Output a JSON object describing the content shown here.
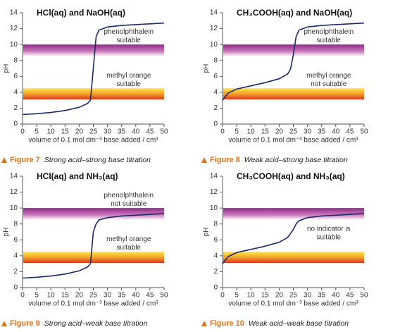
{
  "chart_data": [
    {
      "type": "line",
      "title": "HCl(aq) and NaOH(aq)",
      "caption_label": "Figure 7",
      "caption": "Strong acid–strong base titration",
      "xlabel": "volume of 0.1 mol dm⁻³ base added / cm³",
      "ylabel": "pH",
      "color": "#1b2a6b",
      "x": [
        0,
        5,
        10,
        15,
        20,
        23,
        24,
        25,
        26,
        27,
        30,
        35,
        40,
        45,
        50
      ],
      "values": [
        1.2,
        1.3,
        1.45,
        1.7,
        2.1,
        2.6,
        3.0,
        7.0,
        11.0,
        11.8,
        12.2,
        12.4,
        12.5,
        12.6,
        12.7
      ],
      "xlim": [
        0,
        50
      ],
      "ylim": [
        0,
        14
      ],
      "xticks": [
        0,
        5,
        10,
        15,
        20,
        25,
        30,
        35,
        40,
        45,
        50
      ],
      "yticks": [
        0,
        2,
        4,
        6,
        8,
        10,
        12,
        14
      ],
      "annotations": [
        {
          "lines": [
            "phenolphthalein",
            "suitable"
          ],
          "band": [
            8.5,
            10
          ]
        },
        {
          "lines": [
            "methyl orange",
            "suitable"
          ],
          "band": [
            3.1,
            4.5
          ]
        }
      ]
    },
    {
      "type": "line",
      "title": "CH₃COOH(aq) and NaOH(aq)",
      "caption_label": "Figure 8",
      "caption": "Weak acid–strong base titration",
      "xlabel": "volume of 0.1 mol dm⁻³ base added / cm³",
      "ylabel": "pH",
      "color": "#1b2a6b",
      "x": [
        0,
        2,
        5,
        10,
        15,
        20,
        23,
        24,
        25,
        26,
        27,
        30,
        35,
        40,
        45,
        50
      ],
      "values": [
        3.0,
        3.9,
        4.4,
        4.8,
        5.2,
        5.7,
        6.3,
        6.9,
        8.7,
        11.0,
        11.8,
        12.2,
        12.4,
        12.5,
        12.6,
        12.7
      ],
      "xlim": [
        0,
        50
      ],
      "ylim": [
        0,
        14
      ],
      "xticks": [
        0,
        5,
        10,
        15,
        20,
        25,
        30,
        35,
        40,
        45,
        50
      ],
      "yticks": [
        0,
        2,
        4,
        6,
        8,
        10,
        12,
        14
      ],
      "annotations": [
        {
          "lines": [
            "phenolphthalein",
            "suitable"
          ],
          "band": [
            8.5,
            10
          ]
        },
        {
          "lines": [
            "methyl orange",
            "not suitable"
          ],
          "band": [
            3.1,
            4.5
          ]
        }
      ]
    },
    {
      "type": "line",
      "title": "HCl(aq) and NH₃(aq)",
      "caption_label": "Figure 9",
      "caption": "Strong acid–weak base titration",
      "xlabel": "volume of 0.1 mol dm⁻³ base added / cm³",
      "ylabel": "pH",
      "color": "#1b2a6b",
      "x": [
        0,
        5,
        10,
        15,
        20,
        23,
        24,
        25,
        26,
        27,
        30,
        35,
        40,
        45,
        50
      ],
      "values": [
        1.2,
        1.3,
        1.45,
        1.7,
        2.1,
        2.6,
        3.0,
        7.0,
        8.0,
        8.5,
        8.8,
        9.0,
        9.1,
        9.2,
        9.3
      ],
      "xlim": [
        0,
        50
      ],
      "ylim": [
        0,
        14
      ],
      "xticks": [
        0,
        5,
        10,
        15,
        20,
        25,
        30,
        35,
        40,
        45,
        50
      ],
      "yticks": [
        0,
        2,
        4,
        6,
        8,
        10,
        12,
        14
      ],
      "annotations": [
        {
          "lines": [
            "phenolphthalein",
            "not suitable"
          ],
          "band": [
            8.5,
            10
          ]
        },
        {
          "lines": [
            "methyl orange",
            "suitable"
          ],
          "band": [
            3.1,
            4.5
          ]
        }
      ]
    },
    {
      "type": "line",
      "title": "CH₃COOH(aq) and NH₃(aq)",
      "caption_label": "Figure 10",
      "caption": "Weak acid–weak base titration",
      "xlabel": "volume of 0.1 mol dm⁻³ base added / cm³",
      "ylabel": "pH",
      "color": "#1b2a6b",
      "x": [
        0,
        2,
        5,
        10,
        15,
        20,
        23,
        24,
        25,
        26,
        27,
        30,
        35,
        40,
        45,
        50
      ],
      "values": [
        3.0,
        3.9,
        4.4,
        4.8,
        5.2,
        5.7,
        6.3,
        6.8,
        7.3,
        8.0,
        8.4,
        8.8,
        9.0,
        9.1,
        9.2,
        9.3
      ],
      "xlim": [
        0,
        50
      ],
      "ylim": [
        0,
        14
      ],
      "xticks": [
        0,
        5,
        10,
        15,
        20,
        25,
        30,
        35,
        40,
        45,
        50
      ],
      "yticks": [
        0,
        2,
        4,
        6,
        8,
        10,
        12,
        14
      ],
      "annotations": [
        {
          "band": [
            8.5,
            10
          ]
        },
        {
          "band": [
            3.1,
            4.5
          ]
        },
        {
          "lines": [
            "no indicator is",
            "suitable"
          ]
        }
      ]
    }
  ]
}
